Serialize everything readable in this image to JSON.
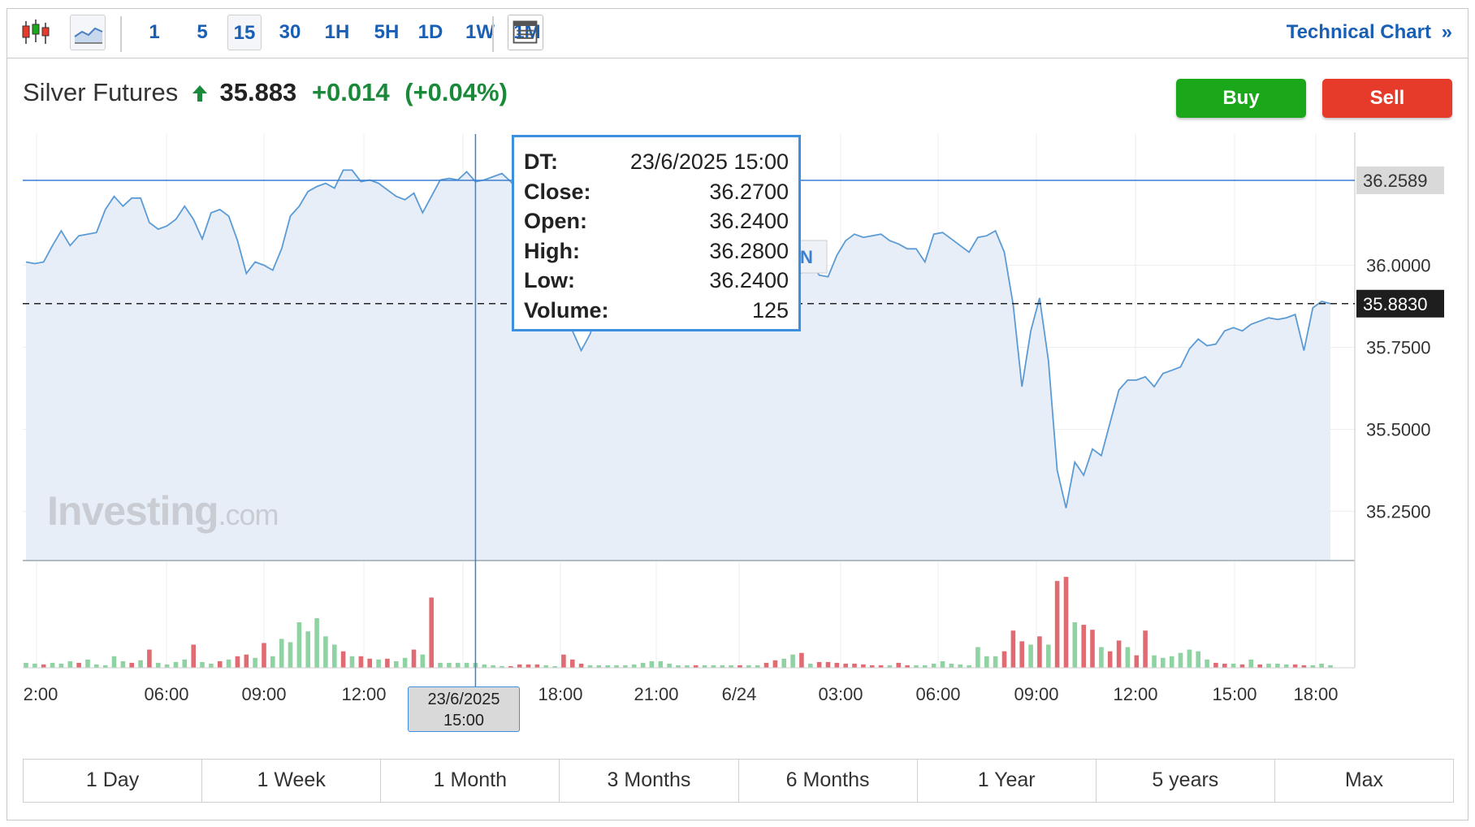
{
  "toolbar": {
    "timeframes": [
      "1",
      "5",
      "15",
      "30",
      "1H",
      "5H",
      "1D",
      "1W",
      "1M"
    ],
    "selected_timeframe": "15",
    "technical_chart_label": "Technical Chart",
    "technical_chart_chevron": "»",
    "icons": [
      "candlestick-chart-icon",
      "area-chart-icon",
      "table-view-icon"
    ]
  },
  "header": {
    "name": "Silver Futures",
    "price": "35.883",
    "change": "+0.014",
    "change_pct": "(+0.04%)",
    "direction_icon": "arrow-up-icon",
    "up_color": "#1a8a3a"
  },
  "buttons": {
    "buy": "Buy",
    "sell": "Sell",
    "buy_color": "#1aa71a",
    "sell_color": "#e63a2a"
  },
  "tooltip": {
    "rows": [
      {
        "k": "DT:",
        "v": "23/6/2025 15:00"
      },
      {
        "k": "Close:",
        "v": "36.2700"
      },
      {
        "k": "Open:",
        "v": "36.2400"
      },
      {
        "k": "High:",
        "v": "36.2800"
      },
      {
        "k": "Low:",
        "v": "36.2400"
      },
      {
        "k": "Volume:",
        "v": "125"
      }
    ],
    "hidden_marker": "N"
  },
  "crosshair": {
    "x_label_line1": "23/6/2025",
    "x_label_line2": "15:00",
    "y_value": 36.2589,
    "y_label": "36.2589"
  },
  "last_price": {
    "value": 35.883,
    "label": "35.8830"
  },
  "watermark": {
    "brand": "Investing",
    "suffix": ".com"
  },
  "ranges": [
    "1 Day",
    "1 Week",
    "1 Month",
    "3 Months",
    "6 Months",
    "1 Year",
    "5 years",
    "Max"
  ],
  "chart_data": {
    "type": "area",
    "title": "",
    "ylim": [
      35.1,
      36.4
    ],
    "y_ticks": [
      "36.0000",
      "35.7500",
      "35.5000",
      "35.2500"
    ],
    "y_tick_values": [
      36.0,
      35.75,
      35.5,
      35.25
    ],
    "x_tick_labels": [
      "2:00",
      "06:00",
      "09:00",
      "12:00",
      "15:00",
      "18:00",
      "21:00",
      "6/24",
      "03:00",
      "06:00",
      "09:00",
      "12:00",
      "15:00",
      "18:00"
    ],
    "grid": true,
    "line_color": "#5b9bd5",
    "fill_color": "#e8eef7",
    "price_series": [
      [
        0,
        36.01
      ],
      [
        1,
        36.005
      ],
      [
        2,
        36.01
      ],
      [
        3,
        36.06
      ],
      [
        4,
        36.105
      ],
      [
        5,
        36.06
      ],
      [
        6,
        36.09
      ],
      [
        7,
        36.095
      ],
      [
        8,
        36.1
      ],
      [
        9,
        36.17
      ],
      [
        10,
        36.21
      ],
      [
        11,
        36.18
      ],
      [
        12,
        36.205
      ],
      [
        13,
        36.205
      ],
      [
        14,
        36.13
      ],
      [
        15,
        36.11
      ],
      [
        16,
        36.12
      ],
      [
        17,
        36.14
      ],
      [
        18,
        36.18
      ],
      [
        19,
        36.14
      ],
      [
        20,
        36.08
      ],
      [
        21,
        36.16
      ],
      [
        22,
        36.17
      ],
      [
        23,
        36.15
      ],
      [
        24,
        36.075
      ],
      [
        25,
        35.975
      ],
      [
        26,
        36.01
      ],
      [
        27,
        36.0
      ],
      [
        28,
        35.985
      ],
      [
        29,
        36.05
      ],
      [
        30,
        36.15
      ],
      [
        31,
        36.18
      ],
      [
        32,
        36.225
      ],
      [
        33,
        36.24
      ],
      [
        34,
        36.25
      ],
      [
        35,
        36.235
      ],
      [
        36,
        36.29
      ],
      [
        37,
        36.29
      ],
      [
        38,
        36.255
      ],
      [
        39,
        36.26
      ],
      [
        40,
        36.25
      ],
      [
        41,
        36.23
      ],
      [
        42,
        36.21
      ],
      [
        43,
        36.2
      ],
      [
        44,
        36.22
      ],
      [
        45,
        36.16
      ],
      [
        46,
        36.21
      ],
      [
        47,
        36.26
      ],
      [
        48,
        36.265
      ],
      [
        49,
        36.26
      ],
      [
        50,
        36.285
      ],
      [
        51,
        36.255
      ],
      [
        52,
        36.26
      ],
      [
        53,
        36.27
      ],
      [
        54,
        36.28
      ],
      [
        55,
        36.255
      ],
      [
        56,
        36.22
      ],
      [
        57,
        36.2
      ],
      [
        58,
        36.165
      ],
      [
        59,
        36.14
      ],
      [
        60,
        36.0
      ],
      [
        61,
        35.85
      ],
      [
        62,
        35.8
      ],
      [
        63,
        35.74
      ],
      [
        64,
        35.79
      ],
      [
        65,
        35.87
      ],
      [
        66,
        35.95
      ],
      [
        67,
        35.98
      ],
      [
        68,
        36.0
      ],
      [
        69,
        36.02
      ],
      [
        70,
        36.04
      ],
      [
        71,
        36.055
      ],
      [
        72,
        36.04
      ],
      [
        73,
        36.05
      ],
      [
        74,
        36.0
      ],
      [
        75,
        36.04
      ],
      [
        76,
        36.05
      ],
      [
        77,
        36.07
      ],
      [
        78,
        36.085
      ],
      [
        79,
        36.06
      ],
      [
        80,
        36.04
      ],
      [
        81,
        36.02
      ],
      [
        82,
        36.01
      ],
      [
        83,
        35.99
      ],
      [
        84,
        35.97
      ],
      [
        85,
        35.96
      ],
      [
        86,
        35.95
      ],
      [
        87,
        35.94
      ],
      [
        88,
        35.98
      ],
      [
        89,
        36.01
      ],
      [
        90,
        35.97
      ],
      [
        91,
        35.965
      ],
      [
        92,
        36.03
      ],
      [
        93,
        36.075
      ],
      [
        94,
        36.095
      ],
      [
        95,
        36.085
      ],
      [
        96,
        36.09
      ],
      [
        97,
        36.095
      ],
      [
        98,
        36.075
      ],
      [
        99,
        36.065
      ],
      [
        100,
        36.05
      ],
      [
        101,
        36.05
      ],
      [
        102,
        36.01
      ],
      [
        103,
        36.095
      ],
      [
        104,
        36.1
      ],
      [
        105,
        36.08
      ],
      [
        106,
        36.06
      ],
      [
        107,
        36.04
      ],
      [
        108,
        36.085
      ],
      [
        109,
        36.09
      ],
      [
        110,
        36.105
      ],
      [
        111,
        36.04
      ],
      [
        112,
        35.88
      ],
      [
        113,
        35.63
      ],
      [
        114,
        35.8
      ],
      [
        115,
        35.9
      ],
      [
        116,
        35.71
      ],
      [
        117,
        35.375
      ],
      [
        118,
        35.26
      ],
      [
        119,
        35.4
      ],
      [
        120,
        35.36
      ],
      [
        121,
        35.44
      ],
      [
        122,
        35.42
      ],
      [
        123,
        35.52
      ],
      [
        124,
        35.62
      ],
      [
        125,
        35.65
      ],
      [
        126,
        35.65
      ],
      [
        127,
        35.66
      ],
      [
        128,
        35.63
      ],
      [
        129,
        35.67
      ],
      [
        130,
        35.68
      ],
      [
        131,
        35.69
      ],
      [
        132,
        35.745
      ],
      [
        133,
        35.775
      ],
      [
        134,
        35.755
      ],
      [
        135,
        35.76
      ],
      [
        136,
        35.8
      ],
      [
        137,
        35.81
      ],
      [
        138,
        35.8
      ],
      [
        139,
        35.82
      ],
      [
        140,
        35.83
      ],
      [
        141,
        35.84
      ],
      [
        142,
        35.835
      ],
      [
        143,
        35.84
      ],
      [
        144,
        35.85
      ],
      [
        145,
        35.74
      ],
      [
        146,
        35.87
      ],
      [
        147,
        35.89
      ],
      [
        148,
        35.883
      ]
    ],
    "volume_series": [
      [
        0,
        6,
        "g"
      ],
      [
        1,
        5,
        "g"
      ],
      [
        2,
        4,
        "r"
      ],
      [
        3,
        6,
        "g"
      ],
      [
        4,
        5,
        "g"
      ],
      [
        5,
        8,
        "g"
      ],
      [
        6,
        6,
        "r"
      ],
      [
        7,
        10,
        "g"
      ],
      [
        8,
        4,
        "g"
      ],
      [
        9,
        3,
        "g"
      ],
      [
        10,
        14,
        "g"
      ],
      [
        11,
        8,
        "g"
      ],
      [
        12,
        6,
        "r"
      ],
      [
        13,
        9,
        "g"
      ],
      [
        14,
        22,
        "r"
      ],
      [
        15,
        6,
        "g"
      ],
      [
        16,
        4,
        "g"
      ],
      [
        17,
        7,
        "g"
      ],
      [
        18,
        10,
        "g"
      ],
      [
        19,
        28,
        "r"
      ],
      [
        20,
        7,
        "g"
      ],
      [
        21,
        5,
        "g"
      ],
      [
        22,
        8,
        "r"
      ],
      [
        23,
        10,
        "g"
      ],
      [
        24,
        14,
        "r"
      ],
      [
        25,
        16,
        "r"
      ],
      [
        26,
        12,
        "g"
      ],
      [
        27,
        30,
        "r"
      ],
      [
        28,
        14,
        "g"
      ],
      [
        29,
        35,
        "g"
      ],
      [
        30,
        31,
        "g"
      ],
      [
        31,
        55,
        "g"
      ],
      [
        32,
        44,
        "g"
      ],
      [
        33,
        60,
        "g"
      ],
      [
        34,
        38,
        "g"
      ],
      [
        35,
        28,
        "g"
      ],
      [
        36,
        20,
        "r"
      ],
      [
        37,
        14,
        "g"
      ],
      [
        38,
        14,
        "r"
      ],
      [
        39,
        11,
        "r"
      ],
      [
        40,
        10,
        "g"
      ],
      [
        41,
        11,
        "r"
      ],
      [
        42,
        8,
        "g"
      ],
      [
        43,
        12,
        "g"
      ],
      [
        44,
        22,
        "r"
      ],
      [
        45,
        16,
        "g"
      ],
      [
        46,
        85,
        "r"
      ],
      [
        47,
        6,
        "g"
      ],
      [
        48,
        6,
        "g"
      ],
      [
        49,
        6,
        "g"
      ],
      [
        50,
        6,
        "g"
      ],
      [
        51,
        6,
        "g"
      ],
      [
        52,
        4,
        "g"
      ],
      [
        53,
        3,
        "g"
      ],
      [
        54,
        2,
        "g"
      ],
      [
        55,
        2,
        "r"
      ],
      [
        56,
        4,
        "r"
      ],
      [
        57,
        4,
        "r"
      ],
      [
        58,
        4,
        "r"
      ],
      [
        59,
        3,
        "g"
      ],
      [
        60,
        2,
        "g"
      ],
      [
        61,
        16,
        "r"
      ],
      [
        62,
        10,
        "r"
      ],
      [
        63,
        5,
        "r"
      ],
      [
        64,
        3,
        "g"
      ],
      [
        65,
        3,
        "g"
      ],
      [
        66,
        3,
        "g"
      ],
      [
        67,
        3,
        "g"
      ],
      [
        68,
        3,
        "g"
      ],
      [
        69,
        4,
        "g"
      ],
      [
        70,
        6,
        "g"
      ],
      [
        71,
        8,
        "g"
      ],
      [
        72,
        8,
        "g"
      ],
      [
        73,
        5,
        "g"
      ],
      [
        74,
        3,
        "g"
      ],
      [
        75,
        3,
        "g"
      ],
      [
        76,
        3,
        "r"
      ],
      [
        77,
        3,
        "g"
      ],
      [
        78,
        3,
        "g"
      ],
      [
        79,
        3,
        "g"
      ],
      [
        80,
        3,
        "g"
      ],
      [
        81,
        3,
        "r"
      ],
      [
        82,
        3,
        "g"
      ],
      [
        83,
        3,
        "g"
      ],
      [
        84,
        6,
        "r"
      ],
      [
        85,
        9,
        "r"
      ],
      [
        86,
        11,
        "g"
      ],
      [
        87,
        16,
        "g"
      ],
      [
        88,
        18,
        "r"
      ],
      [
        89,
        5,
        "g"
      ],
      [
        90,
        7,
        "r"
      ],
      [
        91,
        7,
        "r"
      ],
      [
        92,
        6,
        "r"
      ],
      [
        93,
        5,
        "r"
      ],
      [
        94,
        5,
        "r"
      ],
      [
        95,
        4,
        "r"
      ],
      [
        96,
        3,
        "r"
      ],
      [
        97,
        3,
        "r"
      ],
      [
        98,
        3,
        "g"
      ],
      [
        99,
        6,
        "r"
      ],
      [
        100,
        3,
        "r"
      ],
      [
        101,
        3,
        "g"
      ],
      [
        102,
        3,
        "g"
      ],
      [
        103,
        5,
        "g"
      ],
      [
        104,
        8,
        "g"
      ],
      [
        105,
        5,
        "g"
      ],
      [
        106,
        4,
        "g"
      ],
      [
        107,
        3,
        "g"
      ],
      [
        108,
        25,
        "g"
      ],
      [
        109,
        14,
        "g"
      ],
      [
        110,
        14,
        "g"
      ],
      [
        111,
        20,
        "r"
      ],
      [
        112,
        45,
        "r"
      ],
      [
        113,
        32,
        "r"
      ],
      [
        114,
        28,
        "g"
      ],
      [
        115,
        38,
        "r"
      ],
      [
        116,
        28,
        "g"
      ],
      [
        117,
        105,
        "r"
      ],
      [
        118,
        110,
        "r"
      ],
      [
        119,
        55,
        "g"
      ],
      [
        120,
        52,
        "r"
      ],
      [
        121,
        46,
        "r"
      ],
      [
        122,
        25,
        "g"
      ],
      [
        123,
        20,
        "r"
      ],
      [
        124,
        33,
        "r"
      ],
      [
        125,
        25,
        "g"
      ],
      [
        126,
        15,
        "r"
      ],
      [
        127,
        45,
        "r"
      ],
      [
        128,
        15,
        "g"
      ],
      [
        129,
        12,
        "g"
      ],
      [
        130,
        14,
        "g"
      ],
      [
        131,
        18,
        "g"
      ],
      [
        132,
        22,
        "g"
      ],
      [
        133,
        20,
        "g"
      ],
      [
        134,
        10,
        "g"
      ],
      [
        135,
        6,
        "r"
      ],
      [
        136,
        5,
        "r"
      ],
      [
        137,
        5,
        "g"
      ],
      [
        138,
        4,
        "r"
      ],
      [
        139,
        10,
        "g"
      ],
      [
        140,
        4,
        "r"
      ],
      [
        141,
        5,
        "g"
      ],
      [
        142,
        5,
        "g"
      ],
      [
        143,
        4,
        "g"
      ],
      [
        144,
        4,
        "r"
      ],
      [
        145,
        3,
        "r"
      ],
      [
        146,
        3,
        "g"
      ],
      [
        147,
        5,
        "g"
      ],
      [
        148,
        3,
        "g"
      ]
    ],
    "volume_colors": {
      "g": "#8fd3a3",
      "r": "#e06b72"
    },
    "crosshair_index": 51
  }
}
